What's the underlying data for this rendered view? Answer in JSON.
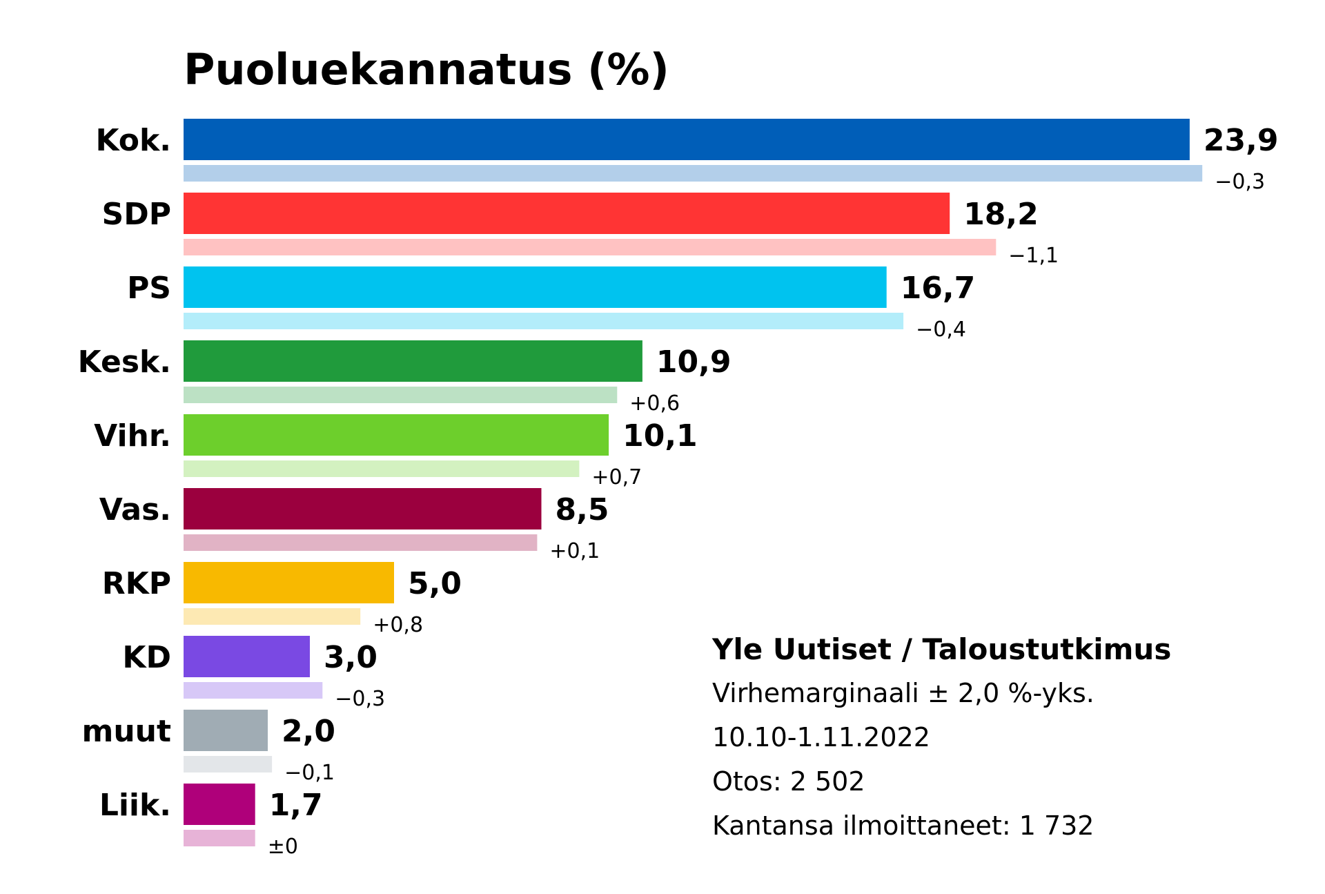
{
  "chart_data": {
    "type": "bar",
    "orientation": "horizontal",
    "title": "Puoluekannatus (%)",
    "categories": [
      "Kok.",
      "SDP",
      "PS",
      "Kesk.",
      "Vihr.",
      "Vas.",
      "RKP",
      "KD",
      "muut",
      "Liik."
    ],
    "values": [
      23.9,
      18.2,
      16.7,
      10.9,
      10.1,
      8.5,
      5.0,
      3.0,
      2.0,
      1.7
    ],
    "value_labels": [
      "23,9",
      "18,2",
      "16,7",
      "10,9",
      "10,1",
      "8,5",
      "5,0",
      "3,0",
      "2,0",
      "1,7"
    ],
    "change_values": [
      -0.3,
      -1.1,
      -0.4,
      0.6,
      0.7,
      0.1,
      0.8,
      -0.3,
      -0.1,
      0.0
    ],
    "change_labels": [
      "−0,3",
      "−1,1",
      "−0,4",
      "+0,6",
      "+0,7",
      "+0,1",
      "+0,8",
      "−0,3",
      "−0,1",
      "±0"
    ],
    "colors": [
      "#005eb8",
      "#ff3434",
      "#00c3ef",
      "#209b3c",
      "#6dcf2c",
      "#9b003e",
      "#f8b900",
      "#7a49e3",
      "#a0acb4",
      "#af007a"
    ],
    "previous_colors": [
      "#b3cfea",
      "#ffc2c2",
      "#b3edfa",
      "#bce1c4",
      "#d3f1c0",
      "#e1b3c5",
      "#fde9b3",
      "#d7c8f7",
      "#e3e6e9",
      "#e7b3d7"
    ],
    "grid": false,
    "legend": "none"
  },
  "source": {
    "title": "Yle Uutiset / Taloustutkimus",
    "lines": [
      "Virhemarginaali ± 2,0 %-yks.",
      "10.10-1.11.2022",
      "Otos: 2 502",
      "Kantansa ilmoittaneet: 1 732"
    ]
  }
}
